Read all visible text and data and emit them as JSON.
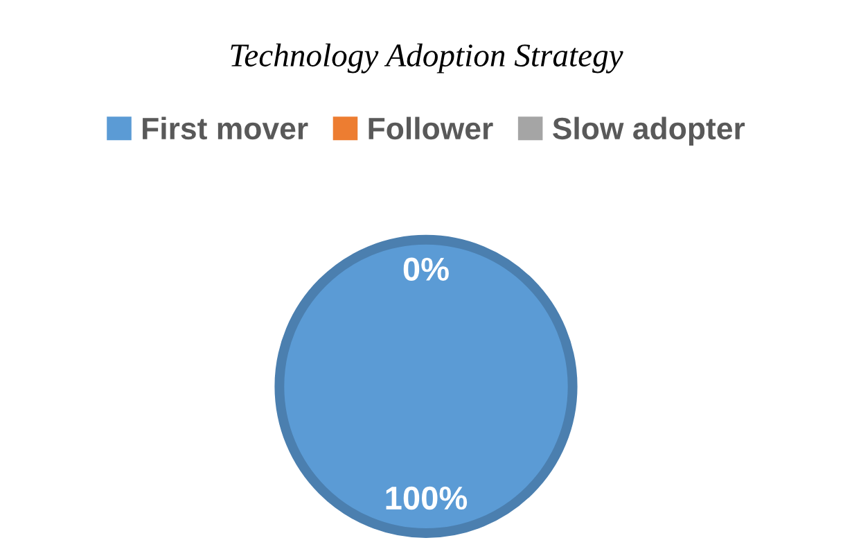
{
  "chart_data": {
    "type": "pie",
    "title": "Technology Adoption Strategy",
    "categories": [
      "First mover",
      "Follower",
      "Slow adopter"
    ],
    "values": [
      100,
      0,
      0
    ],
    "colors": [
      "#5b9bd5",
      "#ed7d31",
      "#a5a5a5"
    ],
    "value_labels": [
      "100%",
      "0%",
      null
    ],
    "legend": "top"
  }
}
